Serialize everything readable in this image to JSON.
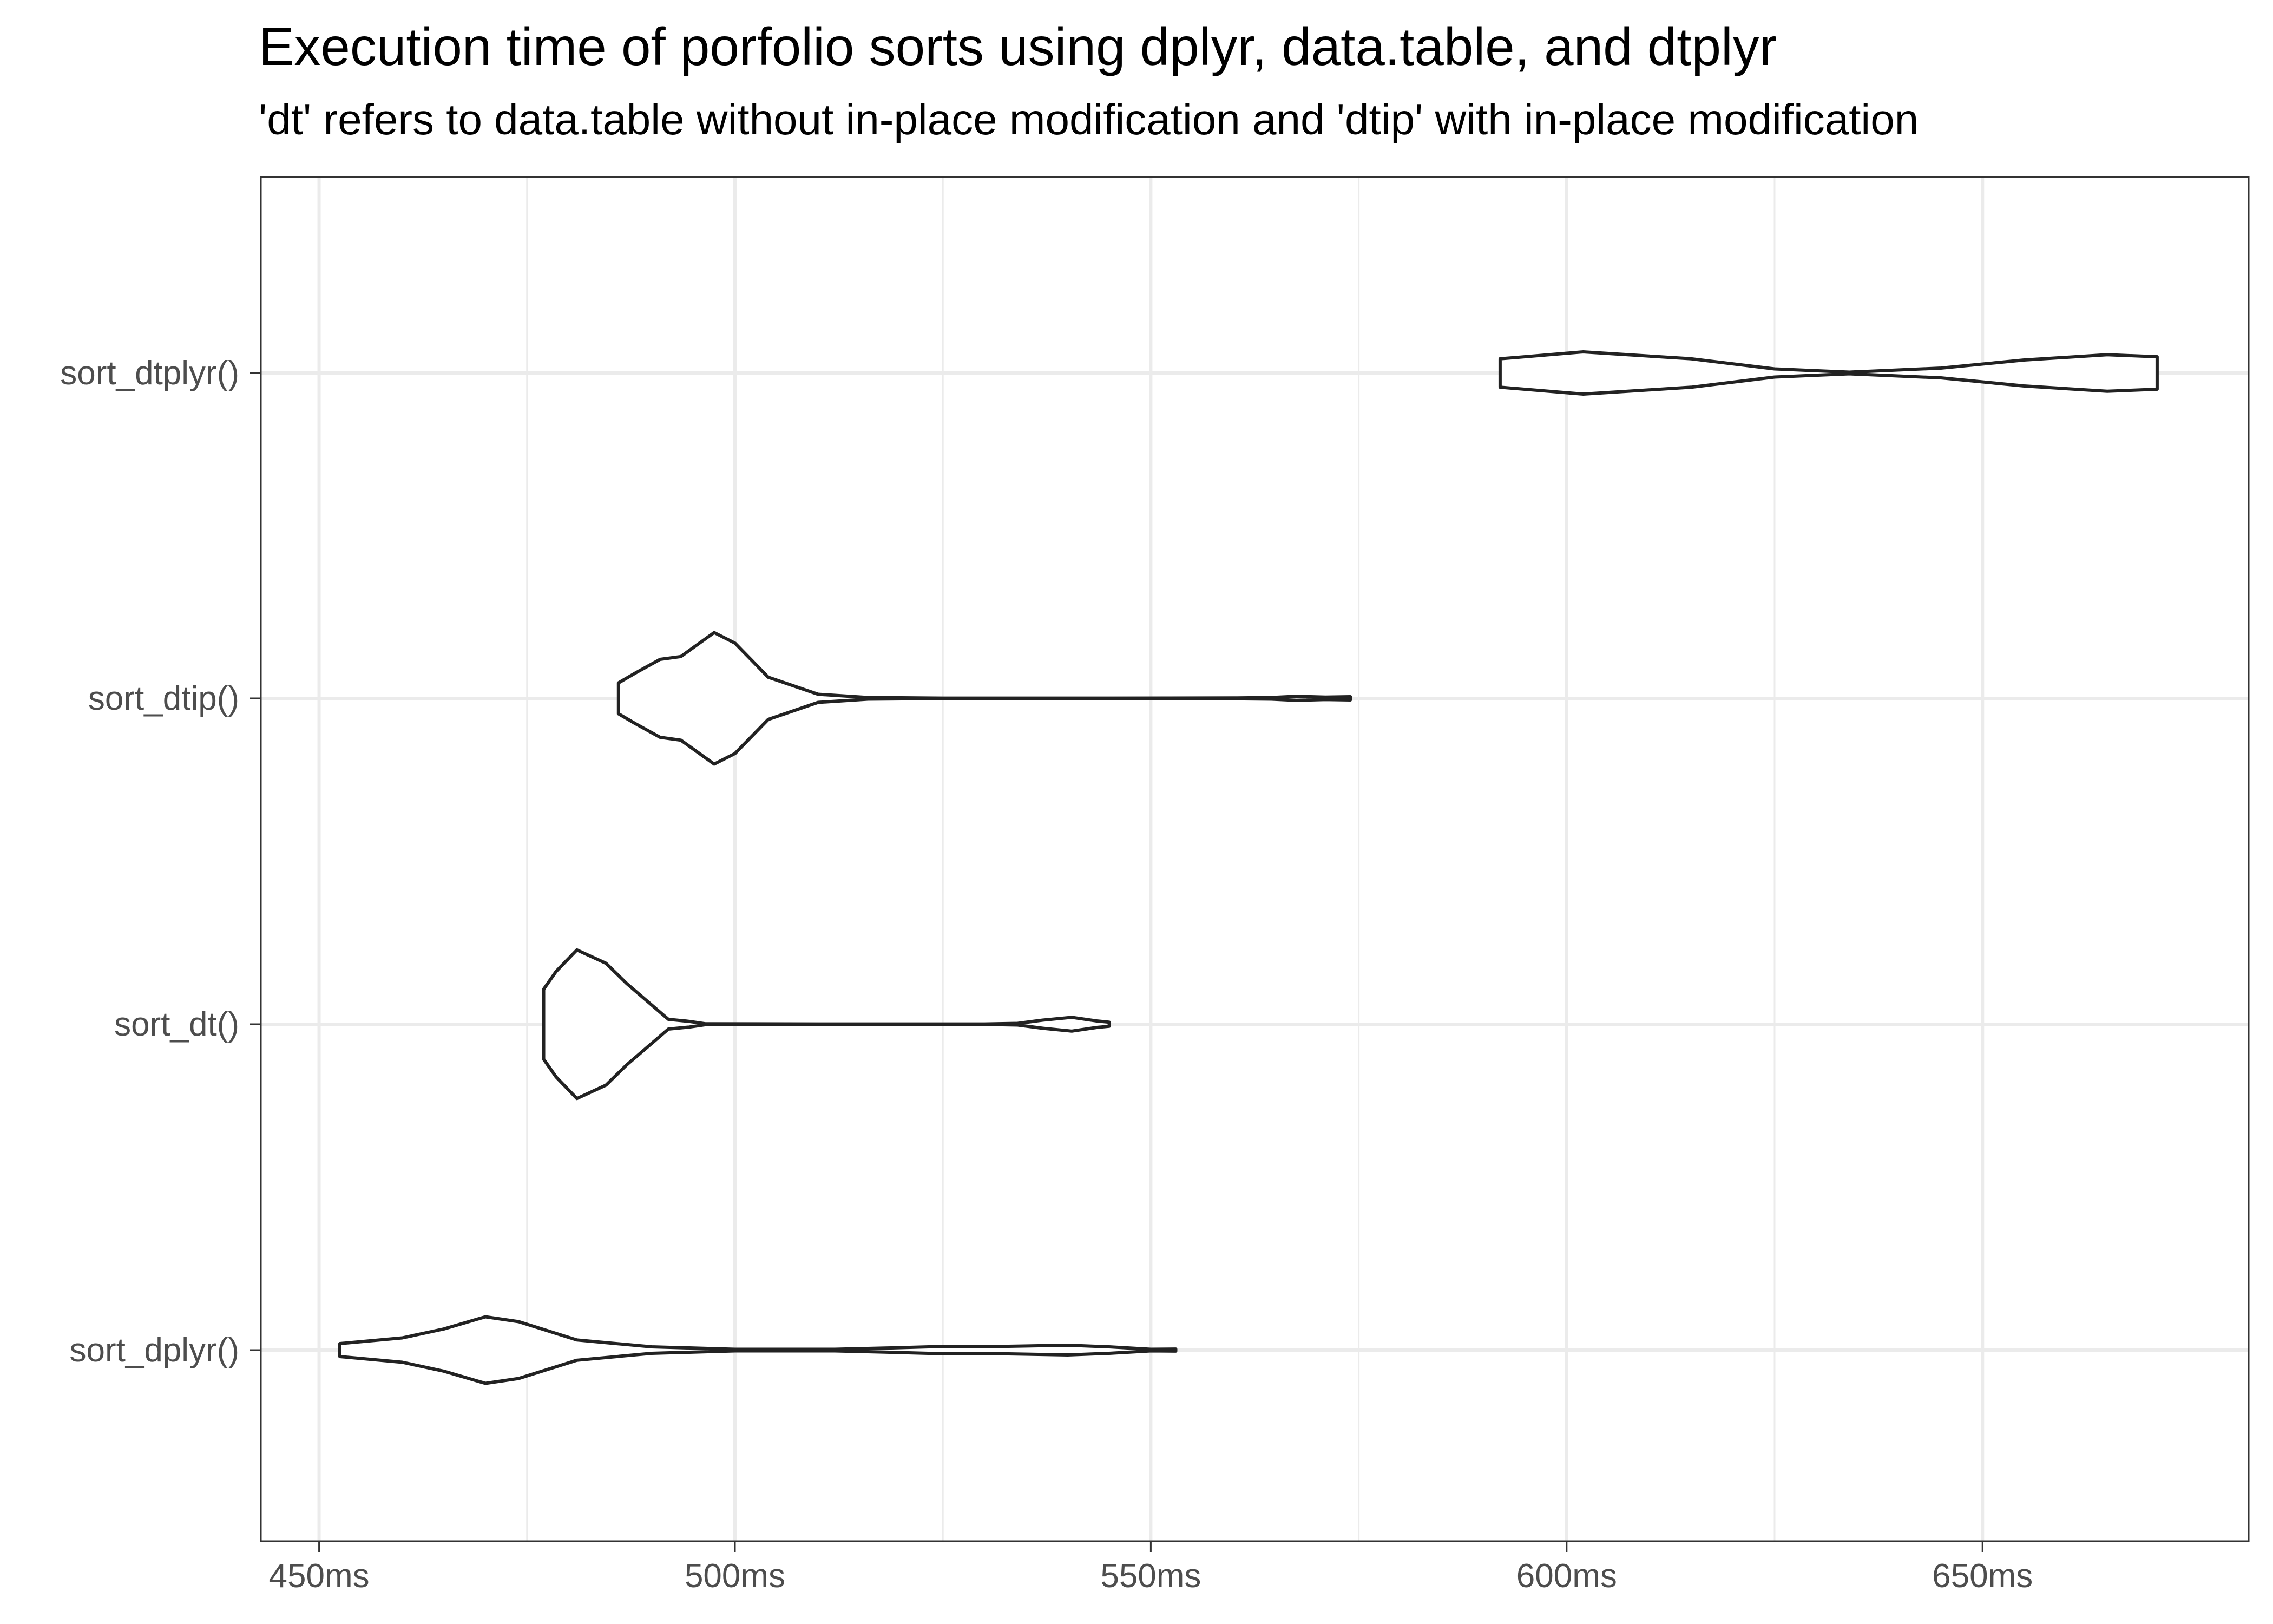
{
  "chart_data": {
    "type": "violin",
    "title": "Execution time of porfolio sorts using dplyr, data.table, and dtplyr",
    "subtitle": "'dt' refers to data.table without in-place modification and 'dtip' with in-place modification",
    "xlabel": "",
    "ylabel": "",
    "xlim": [
      443,
      682
    ],
    "x_unit": "ms",
    "x_ticks": [
      450,
      500,
      550,
      600,
      650
    ],
    "x_tick_labels": [
      "450ms",
      "500ms",
      "550ms",
      "600ms",
      "650ms"
    ],
    "x_minor_ticks": [
      475,
      525,
      575,
      625
    ],
    "categories": [
      "sort_dtplyr()",
      "sort_dtip()",
      "sort_dt()",
      "sort_dplyr()"
    ],
    "grid": true,
    "colors": {
      "outline": "#222222",
      "grid": "#ebebeb",
      "fill": "#ffffff"
    },
    "series": [
      {
        "name": "sort_dtplyr()",
        "profile": [
          [
            592.0,
            0.35
          ],
          [
            602.0,
            0.52
          ],
          [
            615.0,
            0.35
          ],
          [
            625.0,
            0.1
          ],
          [
            634.0,
            0.02
          ],
          [
            645.0,
            0.12
          ],
          [
            655.0,
            0.32
          ],
          [
            665.0,
            0.45
          ],
          [
            671.0,
            0.4
          ]
        ]
      },
      {
        "name": "sort_dtip()",
        "profile": [
          [
            486.0,
            0.38
          ],
          [
            488.0,
            0.62
          ],
          [
            491.0,
            0.96
          ],
          [
            493.5,
            1.03
          ],
          [
            497.5,
            1.62
          ],
          [
            500.0,
            1.36
          ],
          [
            504.0,
            0.52
          ],
          [
            510.0,
            0.1
          ],
          [
            516.0,
            0.02
          ],
          [
            525.0,
            0.005
          ],
          [
            545.0,
            0.005
          ],
          [
            560.0,
            0.01
          ],
          [
            564.5,
            0.02
          ],
          [
            567.5,
            0.05
          ],
          [
            571.0,
            0.03
          ],
          [
            574.0,
            0.04
          ],
          [
            574.0,
            0.0
          ]
        ]
      },
      {
        "name": "sort_dt()",
        "profile": [
          [
            477.0,
            0.86
          ],
          [
            478.5,
            1.3
          ],
          [
            481.0,
            1.83
          ],
          [
            484.5,
            1.5
          ],
          [
            487.0,
            1.0
          ],
          [
            492.0,
            0.12
          ],
          [
            494.5,
            0.07
          ],
          [
            496.5,
            0.01
          ],
          [
            510.0,
            0.005
          ],
          [
            530.0,
            0.005
          ],
          [
            534.0,
            0.02
          ],
          [
            537.0,
            0.1
          ],
          [
            540.5,
            0.17
          ],
          [
            543.5,
            0.08
          ],
          [
            545.0,
            0.05
          ],
          [
            545.0,
            0.0
          ]
        ]
      },
      {
        "name": "sort_dplyr()",
        "profile": [
          [
            452.5,
            0.16
          ],
          [
            460.0,
            0.3
          ],
          [
            465.0,
            0.52
          ],
          [
            470.0,
            0.82
          ],
          [
            474.0,
            0.7
          ],
          [
            481.0,
            0.25
          ],
          [
            490.0,
            0.08
          ],
          [
            500.0,
            0.02
          ],
          [
            512.0,
            0.02
          ],
          [
            518.0,
            0.05
          ],
          [
            525.0,
            0.09
          ],
          [
            532.0,
            0.09
          ],
          [
            540.0,
            0.12
          ],
          [
            545.0,
            0.08
          ],
          [
            550.0,
            0.02
          ],
          [
            553.0,
            0.025
          ],
          [
            553.0,
            0.0
          ]
        ]
      }
    ]
  }
}
